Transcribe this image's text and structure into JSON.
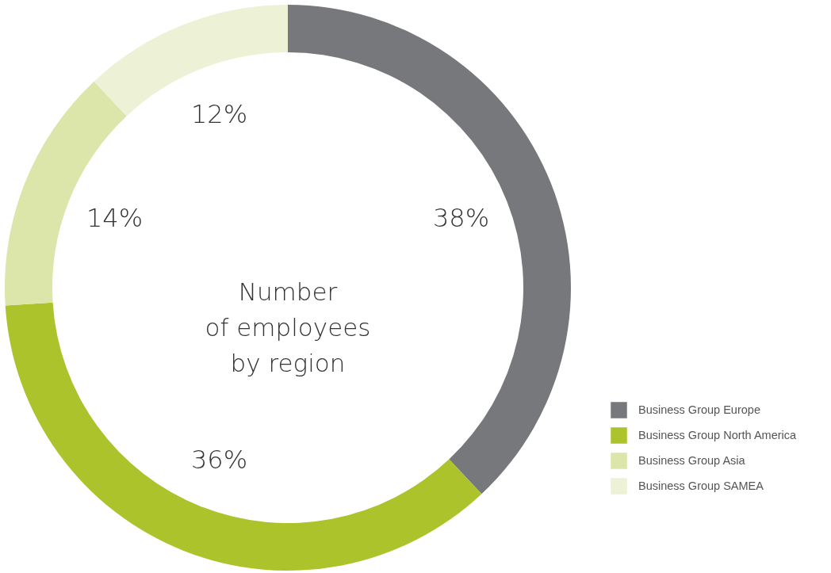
{
  "chart_data": {
    "type": "donut",
    "title": "Number of employees by region",
    "categories": [
      "Business Group Europe",
      "Business Group North America",
      "Business Group Asia",
      "Business Group SAMEA"
    ],
    "values": [
      38,
      36,
      14,
      12
    ],
    "value_labels": [
      "38%",
      "36%",
      "14%",
      "12%"
    ],
    "colors": [
      "#77787b",
      "#adc32b",
      "#dce6ab",
      "#edf1d6"
    ],
    "legend": "bottom right"
  }
}
